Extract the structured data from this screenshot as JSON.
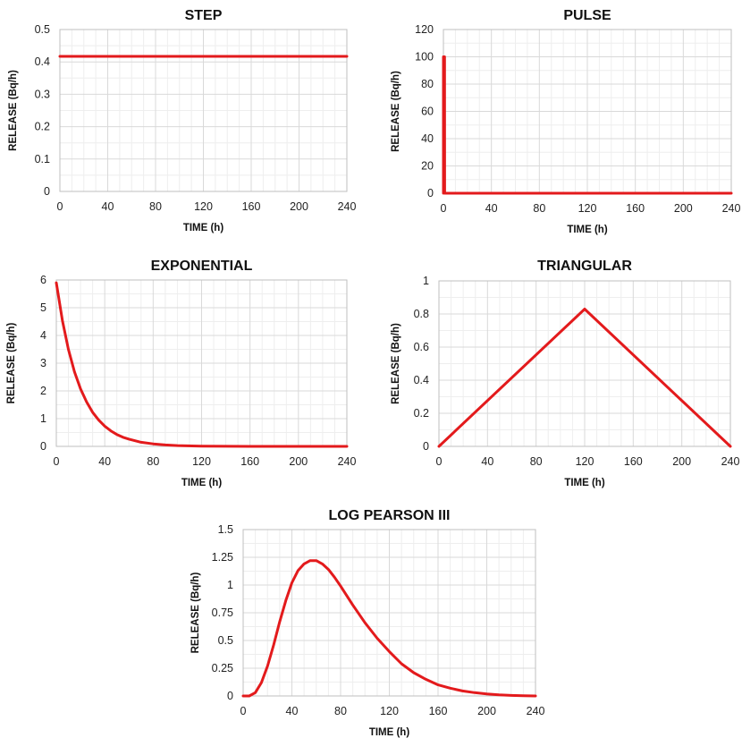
{
  "colors": {
    "series": "#e31a1c",
    "grid_major": "#d9d9d9",
    "grid_minor": "#eeeeee"
  },
  "chart_data": [
    {
      "type": "line",
      "title": "STEP",
      "xlabel": "TIME (h)",
      "ylabel": "RELEASE (Bq/h)",
      "xlim": [
        0,
        240
      ],
      "ylim": [
        0,
        0.5
      ],
      "xticks": [
        0,
        40,
        80,
        120,
        160,
        200,
        240
      ],
      "yticks": [
        0,
        0.1,
        0.2,
        0.3,
        0.4,
        0.5
      ],
      "ytick_labels": [
        "0",
        "0.1",
        "0.2",
        "0.3",
        "0.4",
        "0.5"
      ],
      "grid": true,
      "series": [
        {
          "x": [
            0,
            240
          ],
          "y": [
            0.417,
            0.417
          ]
        }
      ]
    },
    {
      "type": "line",
      "title": "PULSE",
      "xlabel": "TIME (h)",
      "ylabel": "RELEASE (Bq/h)",
      "xlim": [
        0,
        240
      ],
      "ylim": [
        0,
        120
      ],
      "xticks": [
        0,
        40,
        80,
        120,
        160,
        200,
        240
      ],
      "yticks": [
        0,
        20,
        40,
        60,
        80,
        100,
        120
      ],
      "ytick_labels": [
        "0",
        "20",
        "40",
        "60",
        "80",
        "100",
        "120"
      ],
      "grid": true,
      "series": [
        {
          "x": [
            0,
            0.01,
            1,
            1.01,
            240
          ],
          "y": [
            0,
            100,
            100,
            0,
            0
          ]
        }
      ]
    },
    {
      "type": "line",
      "title": "EXPONENTIAL",
      "xlabel": "TIME (h)",
      "ylabel": "RELEASE (Bq/h)",
      "xlim": [
        0,
        240
      ],
      "ylim": [
        0,
        6
      ],
      "xticks": [
        0,
        40,
        80,
        120,
        160,
        200,
        240
      ],
      "yticks": [
        0,
        1,
        2,
        3,
        4,
        5,
        6
      ],
      "ytick_labels": [
        "0",
        "1",
        "2",
        "3",
        "4",
        "5",
        "6"
      ],
      "grid": true,
      "series": [
        {
          "x": [
            0,
            5,
            10,
            15,
            20,
            25,
            30,
            35,
            40,
            45,
            50,
            55,
            60,
            70,
            80,
            90,
            100,
            120,
            160,
            200,
            240
          ],
          "y": [
            5.9,
            4.54,
            3.5,
            2.69,
            2.07,
            1.6,
            1.23,
            0.95,
            0.73,
            0.56,
            0.43,
            0.33,
            0.26,
            0.15,
            0.09,
            0.05,
            0.03,
            0.01,
            0.0,
            0.0,
            0.0
          ]
        }
      ]
    },
    {
      "type": "line",
      "title": "TRIANGULAR",
      "xlabel": "TIME (h)",
      "ylabel": "RELEASE (Bq/h)",
      "xlim": [
        0,
        240
      ],
      "ylim": [
        0,
        1
      ],
      "xticks": [
        0,
        40,
        80,
        120,
        160,
        200,
        240
      ],
      "yticks": [
        0,
        0.2,
        0.4,
        0.6,
        0.8,
        1
      ],
      "ytick_labels": [
        "0",
        "0.2",
        "0.4",
        "0.6",
        "0.8",
        "1"
      ],
      "grid": true,
      "series": [
        {
          "x": [
            0,
            120,
            240
          ],
          "y": [
            0,
            0.83,
            0
          ]
        }
      ]
    },
    {
      "type": "line",
      "title": "LOG PEARSON III",
      "xlabel": "TIME (h)",
      "ylabel": "RELEASE (Bq/h)",
      "xlim": [
        0,
        240
      ],
      "ylim": [
        0,
        1.5
      ],
      "xticks": [
        0,
        40,
        80,
        120,
        160,
        200,
        240
      ],
      "yticks": [
        0,
        0.25,
        0.5,
        0.75,
        1,
        1.25,
        1.5
      ],
      "ytick_labels": [
        "0",
        "0.25",
        "0.5",
        "0.75",
        "1",
        "1.25",
        "1.5"
      ],
      "grid": true,
      "series": [
        {
          "x": [
            0,
            5,
            10,
            15,
            20,
            25,
            30,
            35,
            40,
            45,
            50,
            55,
            60,
            65,
            70,
            75,
            80,
            90,
            100,
            110,
            120,
            130,
            140,
            150,
            160,
            170,
            180,
            190,
            200,
            210,
            220,
            230,
            240
          ],
          "y": [
            0,
            0.0,
            0.03,
            0.12,
            0.27,
            0.46,
            0.67,
            0.86,
            1.02,
            1.13,
            1.19,
            1.22,
            1.22,
            1.19,
            1.14,
            1.07,
            0.99,
            0.82,
            0.66,
            0.52,
            0.4,
            0.29,
            0.21,
            0.15,
            0.1,
            0.07,
            0.045,
            0.03,
            0.018,
            0.01,
            0.005,
            0.002,
            0.0
          ]
        }
      ]
    }
  ]
}
